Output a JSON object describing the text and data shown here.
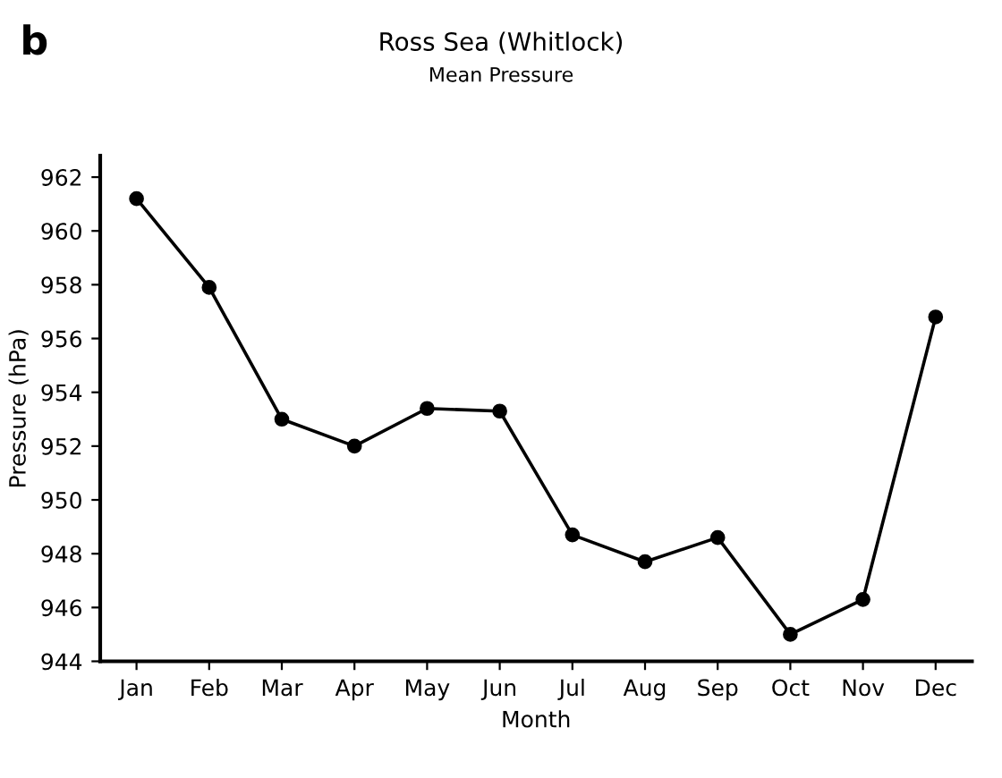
{
  "chart_data": {
    "type": "line",
    "title": "Ross Sea (Whitlock)",
    "subtitle": "Mean Pressure",
    "xlabel": "Month",
    "ylabel": "Pressure (hPa)",
    "annotations": [
      "b"
    ],
    "categories": [
      "Jan",
      "Feb",
      "Mar",
      "Apr",
      "May",
      "Jun",
      "Jul",
      "Aug",
      "Sep",
      "Oct",
      "Nov",
      "Dec"
    ],
    "series": [
      {
        "color": "#000000",
        "values": [
          961.2,
          957.9,
          953.0,
          952.0,
          953.4,
          953.3,
          948.7,
          947.7,
          948.6,
          945.0,
          946.3,
          956.8
        ]
      }
    ],
    "ylim": [
      944,
      962.8
    ],
    "yticks": [
      944,
      946,
      948,
      950,
      952,
      954,
      956,
      958,
      960,
      962
    ],
    "marker": "circle",
    "line_style": "solid",
    "grid": false,
    "legend": false
  }
}
